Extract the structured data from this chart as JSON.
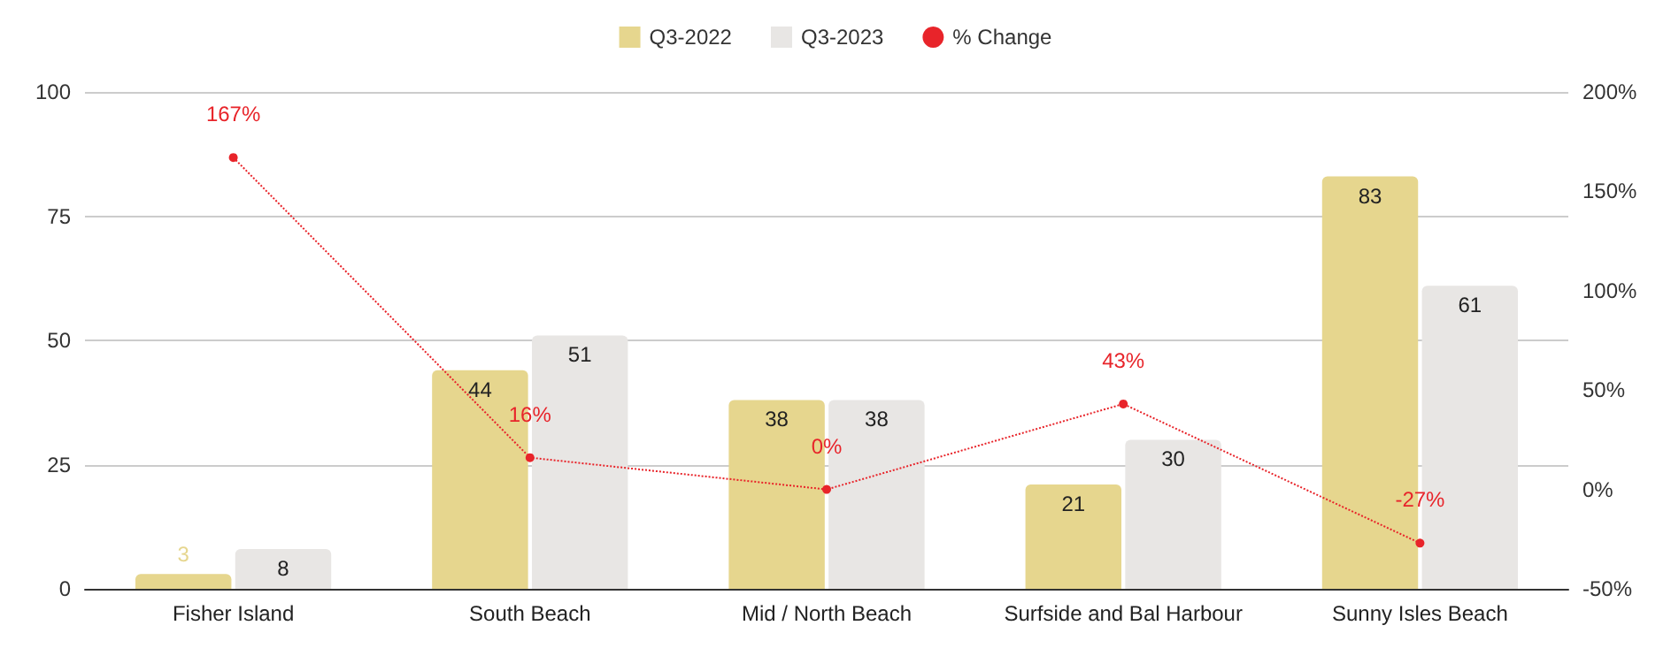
{
  "chart_data": {
    "type": "bar",
    "categories": [
      "Fisher Island",
      "South Beach",
      "Mid / North Beach",
      "Surfside and Bal Harbour",
      "Sunny Isles Beach"
    ],
    "series": [
      {
        "name": "Q3-2022",
        "color": "#e6d68e",
        "values": [
          3,
          44,
          38,
          21,
          83
        ],
        "value_labels": [
          "3",
          "44",
          "38",
          "21",
          "83"
        ]
      },
      {
        "name": "Q3-2023",
        "color": "#e8e6e4",
        "values": [
          8,
          51,
          38,
          30,
          61
        ],
        "value_labels": [
          "8",
          "51",
          "38",
          "30",
          "61"
        ]
      },
      {
        "name": "% Change",
        "type": "line",
        "axis": "y2",
        "color": "#e8242a",
        "values": [
          167,
          16,
          0,
          43,
          -27
        ],
        "value_labels": [
          "167%",
          "16%",
          "0%",
          "43%",
          "-27%"
        ],
        "marker": "circle",
        "line_style": "dotted"
      }
    ],
    "ylim": [
      0,
      100
    ],
    "yticks": [
      0,
      25,
      50,
      75,
      100
    ],
    "y2lim": [
      -50,
      200
    ],
    "y2ticks": [
      {
        "value": -50,
        "label": "-50%"
      },
      {
        "value": 0,
        "label": "0%"
      },
      {
        "value": 50,
        "label": "50%"
      },
      {
        "value": 100,
        "label": "100%"
      },
      {
        "value": 150,
        "label": "150%"
      },
      {
        "value": 200,
        "label": "200%"
      }
    ],
    "grid": "y",
    "legend": "top"
  }
}
